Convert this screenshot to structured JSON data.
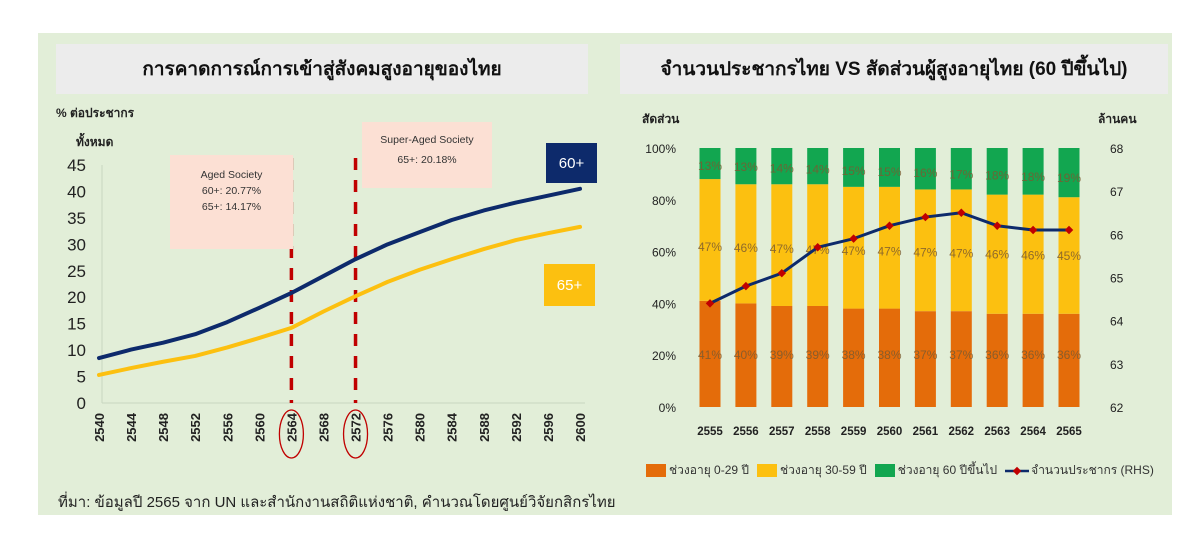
{
  "left_chart": {
    "title": "การคาดการณ์การเข้าสู่สังคมสูงอายุของไทย",
    "ylabel_line1": "% ต่อประชากร",
    "ylabel_line2": "ทั้งหมด",
    "annotations": {
      "aged": {
        "title": "Aged Society",
        "line1": "60+: 20.77%",
        "line2": "65+: 14.17%"
      },
      "super_aged": {
        "title": "Super-Aged Society",
        "line1": "65+: 20.18%"
      }
    },
    "badges": {
      "s60": "60+",
      "s65": "65+"
    },
    "colors": {
      "s60": "#0d2a6b",
      "s65": "#fcc010",
      "marker_line": "#c00000",
      "annotation_bg": "#fce0d4"
    }
  },
  "right_chart": {
    "title": "จำนวนประชากรไทย  VS สัดส่วนผู้สูงอายุไทย (60 ปีขึ้นไป)",
    "ylabel_left": "สัดส่วน",
    "ylabel_right": "ล้านคน",
    "legend": [
      {
        "label": "ช่วงอายุ 0-29 ปี",
        "color": "#e46c0a"
      },
      {
        "label": "ช่วงอายุ 30-59 ปี",
        "color": "#fcc010"
      },
      {
        "label": "ช่วงอายุ 60 ปีขึ้นไป",
        "color": "#12a650"
      },
      {
        "label": "จำนวนประชากร (RHS)",
        "color": "#0d2a6b"
      }
    ]
  },
  "source": "ที่มา: ข้อมูลปี 2565 จาก UN และสำนักงานสถิติแห่งชาติ, คำนวณโดยศูนย์วิจัยกสิกรไทย",
  "chart_data": [
    {
      "type": "line",
      "title": "การคาดการณ์การเข้าสู่สังคมสูงอายุของไทย",
      "xlabel": "",
      "ylabel": "% ต่อประชากรทั้งหมด",
      "x_ticks": [
        2540,
        2544,
        2548,
        2552,
        2556,
        2560,
        2564,
        2568,
        2572,
        2576,
        2580,
        2584,
        2588,
        2592,
        2596,
        2600
      ],
      "yticks": [
        0,
        5,
        10,
        15,
        20,
        25,
        30,
        35,
        40,
        45
      ],
      "ylim": [
        0,
        45
      ],
      "x": [
        2540,
        2544,
        2548,
        2552,
        2556,
        2560,
        2564,
        2568,
        2572,
        2576,
        2580,
        2584,
        2588,
        2592,
        2596,
        2600
      ],
      "series": [
        {
          "name": "60+",
          "values": [
            8.5,
            10.1,
            11.4,
            13.0,
            15.3,
            18.0,
            20.8,
            24.0,
            27.2,
            30.0,
            32.3,
            34.6,
            36.4,
            37.9,
            39.2,
            40.5
          ]
        },
        {
          "name": "65+",
          "values": [
            5.3,
            6.6,
            7.8,
            8.9,
            10.5,
            12.3,
            14.2,
            17.3,
            20.2,
            22.9,
            25.2,
            27.2,
            29.1,
            30.8,
            32.1,
            33.3
          ]
        }
      ],
      "vertical_markers": [
        2564,
        2572
      ],
      "annotations": [
        "Aged Society 60+: 20.77% 65+: 14.17%",
        "Super-Aged Society 65+: 20.18%"
      ],
      "grid": false,
      "legend_position": "right (labels 60+, 65+)"
    },
    {
      "type": "bar",
      "stacked": true,
      "title": "จำนวนประชากรไทย VS สัดส่วนผู้สูงอายุไทย (60 ปีขึ้นไป)",
      "ylabel": "สัดส่วน",
      "ylabel_right": "ล้านคน",
      "categories": [
        "2555",
        "2556",
        "2557",
        "2558",
        "2559",
        "2560",
        "2561",
        "2562",
        "2563",
        "2564",
        "2565"
      ],
      "yticks": [
        "0%",
        "20%",
        "40%",
        "60%",
        "80%",
        "100%"
      ],
      "ylim": [
        0,
        100
      ],
      "yticks_right": [
        62,
        63,
        64,
        65,
        66,
        67,
        68
      ],
      "ylim_right": [
        62,
        68
      ],
      "series": [
        {
          "name": "ช่วงอายุ 0-29 ปี",
          "values": [
            41,
            40,
            39,
            39,
            38,
            38,
            37,
            37,
            36,
            36,
            36
          ]
        },
        {
          "name": "ช่วงอายุ 30-59 ปี",
          "values": [
            47,
            46,
            47,
            47,
            47,
            47,
            47,
            47,
            46,
            46,
            45
          ]
        },
        {
          "name": "ช่วงอายุ 60 ปีขึ้นไป",
          "values": [
            13,
            13,
            14,
            14,
            15,
            15,
            16,
            17,
            18,
            18,
            19
          ]
        },
        {
          "name": "จำนวนประชากร (RHS)",
          "type": "line",
          "axis": "right",
          "values": [
            64.4,
            64.8,
            65.1,
            65.7,
            65.9,
            66.2,
            66.4,
            66.5,
            66.2,
            66.1,
            66.1
          ]
        }
      ],
      "legend_position": "bottom",
      "grid": false
    }
  ]
}
